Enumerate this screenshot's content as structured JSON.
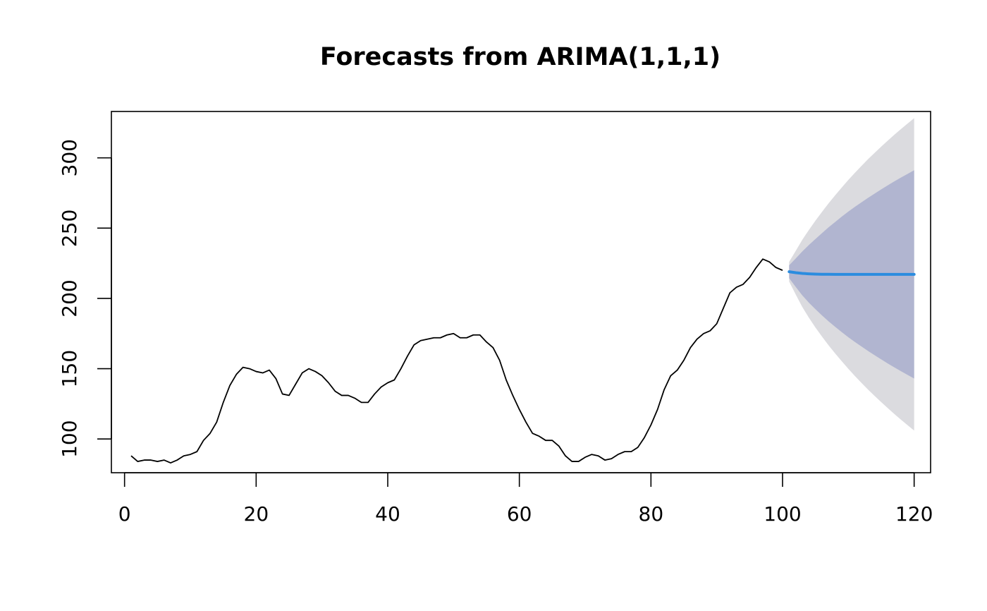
{
  "chart_data": {
    "type": "line",
    "title": "Forecasts from ARIMA(1,1,1)",
    "xlabel": "",
    "ylabel": "",
    "xlim": [
      -2,
      122.5
    ],
    "ylim": [
      76,
      333
    ],
    "x_ticks": [
      0,
      20,
      40,
      60,
      80,
      100,
      120
    ],
    "y_ticks": [
      100,
      150,
      200,
      250,
      300
    ],
    "grid": false,
    "legend": "none",
    "series": [
      {
        "role": "observed",
        "color": "#000000",
        "x_start": 1,
        "values": [
          88,
          84,
          85,
          85,
          84,
          85,
          83,
          85,
          88,
          89,
          91,
          99,
          104,
          112,
          126,
          138,
          146,
          151,
          150,
          148,
          147,
          149,
          143,
          132,
          131,
          139,
          147,
          150,
          148,
          145,
          140,
          134,
          131,
          131,
          129,
          126,
          126,
          132,
          137,
          140,
          142,
          150,
          159,
          167,
          170,
          171,
          172,
          172,
          174,
          175,
          172,
          172,
          174,
          174,
          169,
          165,
          156,
          142,
          131,
          121,
          112,
          104,
          102,
          99,
          99,
          95,
          88,
          84,
          84,
          87,
          89,
          88,
          85,
          86,
          89,
          91,
          91,
          94,
          101,
          110,
          121,
          135,
          145,
          149,
          156,
          165,
          171,
          175,
          177,
          182,
          193,
          204,
          208,
          210,
          215,
          222,
          228,
          226,
          222,
          220
        ]
      },
      {
        "role": "forecast",
        "color": "#2b8cdf",
        "x_start": 101,
        "values": [
          219,
          218.3,
          217.8,
          217.5,
          217.3,
          217.2,
          217.15,
          217.1,
          217.1,
          217.1,
          217.1,
          217.1,
          217.1,
          217.1,
          217.1,
          217.1,
          217.1,
          217.1,
          217.1,
          217.1
        ],
        "lower_80": [
          214.4,
          208.2,
          202.2,
          197.0,
          192.3,
          187.9,
          183.7,
          179.8,
          176.0,
          172.4,
          169.0,
          165.8,
          162.6,
          159.6,
          156.6,
          153.7,
          150.9,
          148.2,
          145.6,
          143.0
        ],
        "upper_80": [
          223.6,
          228.4,
          233.4,
          238.0,
          242.3,
          246.5,
          250.6,
          254.4,
          258.2,
          261.8,
          265.2,
          268.4,
          271.6,
          274.6,
          277.6,
          280.5,
          283.3,
          286.0,
          288.6,
          291.2
        ],
        "lower_95": [
          212.0,
          202.8,
          193.9,
          186.3,
          179.3,
          172.8,
          166.6,
          160.8,
          155.3,
          149.9,
          144.8,
          139.9,
          135.1,
          130.6,
          126.2,
          121.9,
          117.7,
          113.7,
          109.8,
          106.0
        ],
        "upper_95": [
          226.0,
          233.8,
          241.7,
          248.7,
          255.3,
          261.6,
          267.7,
          273.4,
          278.9,
          284.3,
          289.4,
          294.3,
          299.1,
          303.6,
          308.0,
          312.3,
          316.5,
          320.5,
          324.4,
          328.2
        ]
      }
    ],
    "colors": {
      "band_95": "#dbdbdf",
      "band_80": "#b1b5d0"
    }
  }
}
